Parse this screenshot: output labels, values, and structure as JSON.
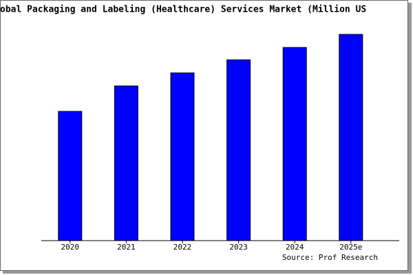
{
  "chart_data": {
    "type": "bar",
    "title": "obal Packaging and Labeling (Healthcare) Services Market (Million US",
    "categories": [
      "2020",
      "2021",
      "2022",
      "2023",
      "2024",
      "2025e"
    ],
    "values": [
      188,
      225,
      244,
      263,
      281,
      300
    ],
    "color": "#0000ff",
    "ylim": [
      0,
      300
    ],
    "source": "Source: Prof Research"
  }
}
